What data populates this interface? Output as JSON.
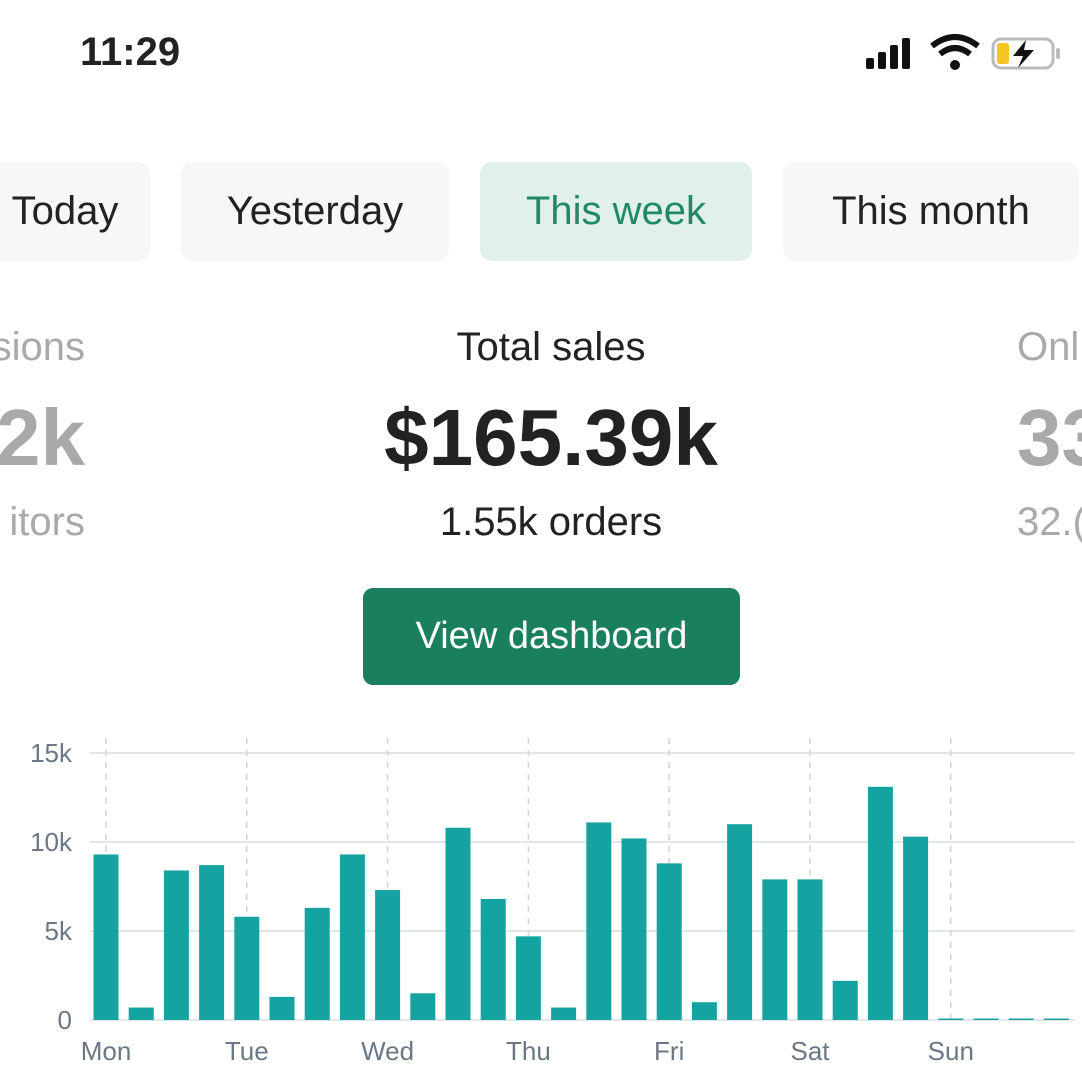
{
  "status_bar": {
    "time": "11:29"
  },
  "tabs": [
    "Today",
    "Yesterday",
    "This week",
    "This month"
  ],
  "metrics": {
    "left": {
      "label": "sions",
      "value": "2k",
      "sub": "itors"
    },
    "center": {
      "label": "Total sales",
      "value": "$165.39k",
      "sub": "1.55k orders"
    },
    "right": {
      "label": "Onl",
      "value": "33",
      "sub": "32.("
    }
  },
  "button": "View dashboard",
  "chart_data": {
    "type": "bar",
    "categories": [
      "Mon",
      null,
      null,
      null,
      "Tue",
      null,
      null,
      null,
      "Wed",
      null,
      null,
      null,
      "Thu",
      null,
      null,
      null,
      "Fri",
      null,
      null,
      null,
      "Sat",
      null,
      null,
      null,
      "Sun",
      null,
      null,
      null
    ],
    "values": [
      9300,
      700,
      8400,
      8700,
      5800,
      1300,
      6300,
      9300,
      7300,
      1500,
      10800,
      6800,
      4700,
      700,
      11100,
      10200,
      8800,
      1000,
      11000,
      7900,
      7900,
      2200,
      13100,
      10300,
      0,
      0,
      0,
      0
    ],
    "color": "#14a3a0",
    "ylim": [
      0,
      15000
    ],
    "yticks": [
      0,
      {
        "value": 5000,
        "label": "5k"
      },
      {
        "value": 10000,
        "label": "10k"
      },
      {
        "value": 15000,
        "label": "15k"
      }
    ],
    "grid": true
  }
}
